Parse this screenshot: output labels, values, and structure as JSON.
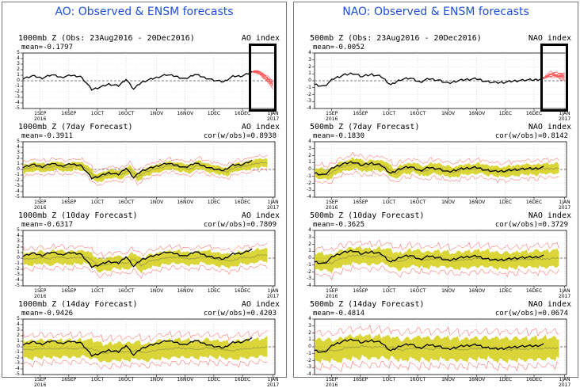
{
  "panels": [
    {
      "title": "AO: Observed & ENSM forecasts",
      "charts": [
        {
          "title": "1000mb Z (Obs: 23Aug2016 - 20Dec2016)",
          "index": "AO index",
          "mean": "mean=-0.1797",
          "cor": ""
        },
        {
          "title": "1000mb Z (7day Forecast)",
          "index": "AO index",
          "mean": "mean=-0.3911",
          "cor": "cor(w/obs)=0.8938"
        },
        {
          "title": "1000mb Z (10day Forecast)",
          "index": "AO index",
          "mean": "mean=-0.6317",
          "cor": "cor(w/obs)=0.7809"
        },
        {
          "title": "1000mb Z (14day Forecast)",
          "index": "AO index",
          "mean": "mean=-0.9426",
          "cor": "cor(w/obs)=0.4203"
        }
      ]
    },
    {
      "title": "NAO: Observed & ENSM forecasts",
      "charts": [
        {
          "title": "500mb Z (Obs: 23Aug2016 - 20Dec2016)",
          "index": "NAO index",
          "mean": "mean=-0.0052",
          "cor": ""
        },
        {
          "title": "500mb Z (7day Forecast)",
          "index": "NAO index",
          "mean": "mean=-0.1830",
          "cor": "cor(w/obs)=0.8142"
        },
        {
          "title": "500mb Z (10day Forecast)",
          "index": "NAO index",
          "mean": "mean=-0.3625",
          "cor": "cor(w/obs)=0.3729"
        },
        {
          "title": "500mb Z (14day Forecast)",
          "index": "NAO index",
          "mean": "mean=-0.4814",
          "cor": "cor(w/obs)=0.0674"
        }
      ]
    }
  ],
  "axis": {
    "x_ticks": [
      {
        "day": 9,
        "label": "1SEP",
        "sub": "2016"
      },
      {
        "day": 24,
        "label": "16SEP",
        "sub": ""
      },
      {
        "day": 39,
        "label": "1OCT",
        "sub": ""
      },
      {
        "day": 54,
        "label": "16OCT",
        "sub": ""
      },
      {
        "day": 70,
        "label": "1NOV",
        "sub": ""
      },
      {
        "day": 85,
        "label": "16NOV",
        "sub": ""
      },
      {
        "day": 100,
        "label": "1DEC",
        "sub": ""
      },
      {
        "day": 115,
        "label": "16DEC",
        "sub": ""
      },
      {
        "day": 131,
        "label": "1JAN",
        "sub": "2017"
      }
    ],
    "x_range_days": [
      0,
      132
    ],
    "x_start_date": "23Aug2016",
    "ao_ylim": [
      -5,
      5
    ],
    "nao_ylim": [
      -4,
      4
    ],
    "grid": true
  },
  "colors": {
    "observed": "#000000",
    "ensemble_mean": "#9a9a4a",
    "spread": "#d6d024",
    "members": "#ff5050",
    "title": "#1f4fd8",
    "zero_line": "#555555"
  },
  "chart_data": [
    {
      "type": "line",
      "name": "AO observed",
      "x_dates_start": "23Aug2016",
      "ylim": [
        -5,
        5
      ],
      "series": [
        {
          "name": "Observed",
          "x": [
            0,
            5,
            10,
            15,
            20,
            25,
            30,
            33,
            36,
            40,
            45,
            50,
            54,
            58,
            62,
            66,
            70,
            75,
            80,
            85,
            90,
            95,
            100,
            105,
            110,
            115,
            120
          ],
          "values": [
            0.4,
            0.9,
            0.5,
            1.1,
            0.6,
            1.0,
            0.8,
            -0.3,
            -1.6,
            -1.2,
            -0.6,
            -0.9,
            0.3,
            -1.5,
            -0.3,
            0.2,
            0.6,
            1.1,
            0.8,
            0.3,
            1.2,
            0.6,
            0.1,
            -0.2,
            0.8,
            0.9,
            1.6
          ]
        }
      ]
    },
    {
      "type": "line",
      "name": "NAO observed",
      "x_dates_start": "23Aug2016",
      "ylim": [
        -4,
        4
      ],
      "series": [
        {
          "name": "Observed",
          "x": [
            0,
            5,
            10,
            15,
            20,
            25,
            30,
            35,
            40,
            45,
            50,
            55,
            60,
            65,
            70,
            75,
            80,
            85,
            90,
            95,
            100,
            105,
            110,
            115,
            120
          ],
          "values": [
            -0.5,
            -0.8,
            0.3,
            0.8,
            1.1,
            0.6,
            0.9,
            0.6,
            -0.6,
            0.2,
            0.4,
            -0.2,
            0.3,
            0.1,
            -0.4,
            0.0,
            0.2,
            0.3,
            -0.1,
            -0.3,
            -0.2,
            0.0,
            0.1,
            0.1,
            0.3
          ]
        }
      ]
    }
  ]
}
